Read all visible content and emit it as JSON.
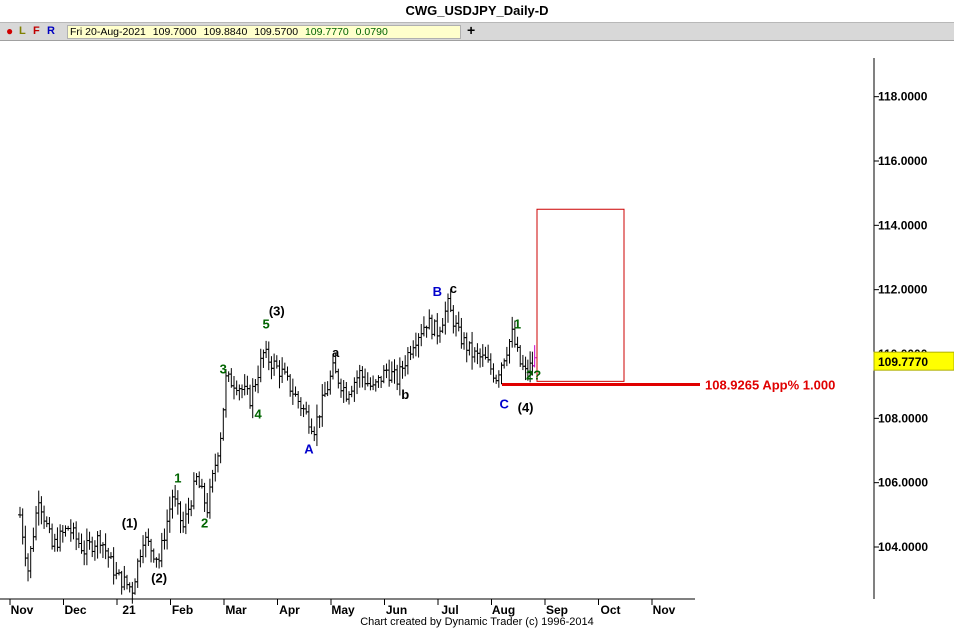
{
  "window": {
    "title": "CWG_USDJPY_Daily-D"
  },
  "toolbar": {
    "letters": [
      "L",
      "F",
      "R"
    ],
    "info": {
      "date": "Fri 20-Aug-2021",
      "open": "109.7000",
      "high": "109.8840",
      "low": "109.5700",
      "close": "109.7770",
      "change": "0.0790"
    },
    "plus": "+"
  },
  "footer": {
    "credit": "Chart created by Dynamic Trader  (c) 1996-2014"
  },
  "chart_data": {
    "type": "ohlc",
    "y_ticks": [
      "118.0000",
      "116.0000",
      "114.0000",
      "112.0000",
      "110.0000",
      "108.0000",
      "106.0000",
      "104.0000"
    ],
    "ylim": [
      102.5,
      119.5
    ],
    "x_months": [
      "Nov",
      "Dec",
      "21",
      "Feb",
      "Mar",
      "Apr",
      "May",
      "Jun",
      "Jul",
      "Aug",
      "Sep",
      "Oct",
      "Nov"
    ],
    "last_price": "109.7770",
    "target_box": {
      "y_high": 114.5,
      "y_low": 109.15
    },
    "support_line": {
      "price": 108.9265,
      "label": "108.9265 App% 1.000"
    },
    "anchors": [
      {
        "m": 0,
        "p": 105.0
      },
      {
        "m": 0.15,
        "p": 103.3
      },
      {
        "m": 0.35,
        "p": 105.6
      },
      {
        "m": 0.6,
        "p": 104.0
      },
      {
        "m": 0.9,
        "p": 104.6
      },
      {
        "m": 1.2,
        "p": 103.9
      },
      {
        "m": 1.5,
        "p": 104.3
      },
      {
        "m": 1.8,
        "p": 103.1
      },
      {
        "m": 2.1,
        "p": 102.7
      },
      {
        "m": 2.3,
        "p": 104.3
      },
      {
        "m": 2.6,
        "p": 103.6
      },
      {
        "m": 2.85,
        "p": 105.6
      },
      {
        "m": 3.05,
        "p": 104.6
      },
      {
        "m": 3.3,
        "p": 106.1
      },
      {
        "m": 3.5,
        "p": 105.2
      },
      {
        "m": 3.75,
        "p": 107.5
      },
      {
        "m": 3.85,
        "p": 109.2
      },
      {
        "m": 4.05,
        "p": 109.1
      },
      {
        "m": 4.3,
        "p": 108.6
      },
      {
        "m": 4.55,
        "p": 110.0
      },
      {
        "m": 4.9,
        "p": 109.4
      },
      {
        "m": 5.25,
        "p": 108.4
      },
      {
        "m": 5.5,
        "p": 107.7
      },
      {
        "m": 5.85,
        "p": 109.5
      },
      {
        "m": 6.1,
        "p": 108.8
      },
      {
        "m": 6.35,
        "p": 109.4
      },
      {
        "m": 6.6,
        "p": 108.9
      },
      {
        "m": 6.85,
        "p": 109.5
      },
      {
        "m": 7.05,
        "p": 109.2
      },
      {
        "m": 7.35,
        "p": 110.4
      },
      {
        "m": 7.6,
        "p": 111.0
      },
      {
        "m": 7.8,
        "p": 110.7
      },
      {
        "m": 8.0,
        "p": 111.5
      },
      {
        "m": 8.2,
        "p": 110.6
      },
      {
        "m": 8.45,
        "p": 110.0
      },
      {
        "m": 8.7,
        "p": 109.8
      },
      {
        "m": 8.9,
        "p": 109.3
      },
      {
        "m": 9.2,
        "p": 110.6
      },
      {
        "m": 9.35,
        "p": 109.7
      },
      {
        "m": 9.45,
        "p": 109.4
      },
      {
        "m": 9.62,
        "p": 109.78
      }
    ],
    "labels": [
      {
        "text": "(1)",
        "m": 2.05,
        "p": 104.6,
        "color": "#000000"
      },
      {
        "text": "(2)",
        "m": 2.6,
        "p": 102.9,
        "color": "#000000"
      },
      {
        "text": "1",
        "m": 2.95,
        "p": 106.0,
        "color": "#006400"
      },
      {
        "text": "2",
        "m": 3.45,
        "p": 104.6,
        "color": "#006400"
      },
      {
        "text": "3",
        "m": 3.8,
        "p": 109.4,
        "color": "#006400"
      },
      {
        "text": "4",
        "m": 4.45,
        "p": 108.0,
        "color": "#006400"
      },
      {
        "text": "5",
        "m": 4.6,
        "p": 110.8,
        "color": "#006400"
      },
      {
        "text": "(3)",
        "m": 4.8,
        "p": 111.2,
        "color": "#000000"
      },
      {
        "text": "A",
        "m": 5.4,
        "p": 106.9,
        "color": "#0000cc"
      },
      {
        "text": "a",
        "m": 5.9,
        "p": 109.9,
        "color": "#000000"
      },
      {
        "text": "b",
        "m": 7.2,
        "p": 108.6,
        "color": "#000000"
      },
      {
        "text": "B",
        "m": 7.8,
        "p": 111.8,
        "color": "#0000cc"
      },
      {
        "text": "c",
        "m": 8.1,
        "p": 111.9,
        "color": "#000000"
      },
      {
        "text": "1",
        "m": 9.3,
        "p": 110.8,
        "color": "#006400"
      },
      {
        "text": "2?",
        "m": 9.6,
        "p": 109.2,
        "color": "#006400"
      },
      {
        "text": "C",
        "m": 9.05,
        "p": 108.3,
        "color": "#0000cc"
      },
      {
        "text": "(4)",
        "m": 9.45,
        "p": 108.2,
        "color": "#000000"
      }
    ]
  }
}
